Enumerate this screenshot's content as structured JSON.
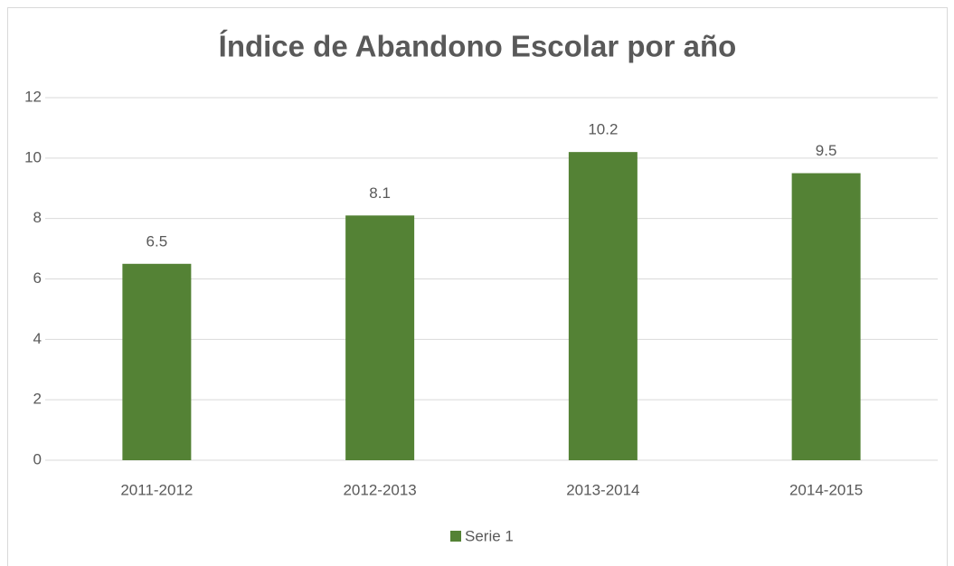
{
  "chart_data": {
    "type": "bar",
    "title": "Índice de Abandono Escolar por año",
    "categories": [
      "2011-2012",
      "2012-2013",
      "2013-2014",
      "2014-2015"
    ],
    "series": [
      {
        "name": "Serie 1",
        "color": "#548235",
        "values": [
          6.5,
          8.1,
          10.2,
          9.5
        ]
      }
    ],
    "ylim": [
      0,
      12
    ],
    "yticks": [
      0,
      2,
      4,
      6,
      8,
      10,
      12
    ],
    "grid": true,
    "legend": "bottom"
  }
}
